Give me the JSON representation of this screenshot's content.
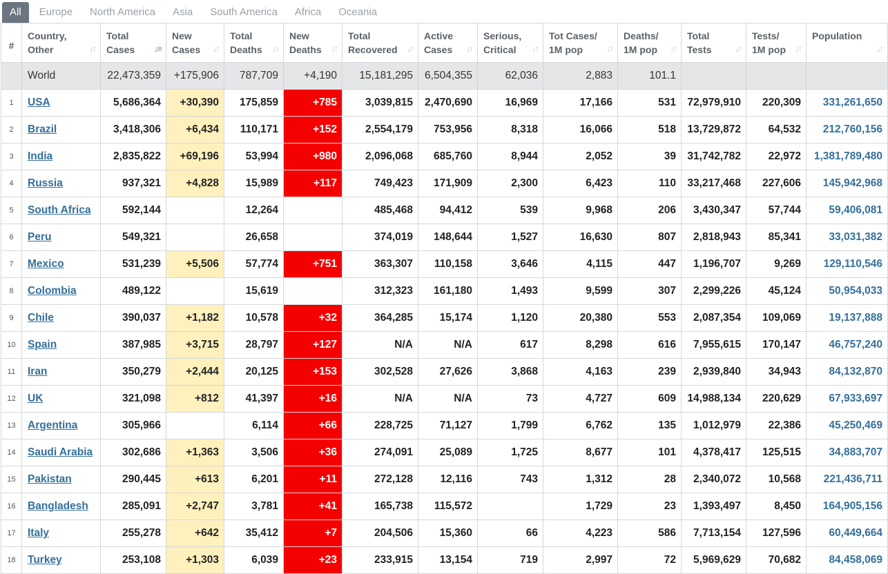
{
  "tabs": [
    {
      "label": "All",
      "active": true
    },
    {
      "label": "Europe",
      "active": false
    },
    {
      "label": "North America",
      "active": false
    },
    {
      "label": "Asia",
      "active": false
    },
    {
      "label": "South America",
      "active": false
    },
    {
      "label": "Africa",
      "active": false
    },
    {
      "label": "Oceania",
      "active": false
    }
  ],
  "headers": [
    {
      "l1": "#",
      "l2": ""
    },
    {
      "l1": "Country,",
      "l2": "Other"
    },
    {
      "l1": "Total",
      "l2": "Cases"
    },
    {
      "l1": "New",
      "l2": "Cases"
    },
    {
      "l1": "Total",
      "l2": "Deaths"
    },
    {
      "l1": "New",
      "l2": "Deaths"
    },
    {
      "l1": "Total",
      "l2": "Recovered"
    },
    {
      "l1": "Active",
      "l2": "Cases"
    },
    {
      "l1": "Serious,",
      "l2": "Critical"
    },
    {
      "l1": "Tot Cases/",
      "l2": "1M pop"
    },
    {
      "l1": "Deaths/",
      "l2": "1M pop"
    },
    {
      "l1": "Total",
      "l2": "Tests"
    },
    {
      "l1": "Tests/",
      "l2": "1M pop"
    },
    {
      "l1": "Population",
      "l2": ""
    }
  ],
  "active_sort_column": "Total Cases",
  "colors": {
    "tab_active_bg": "#6a7580",
    "new_cases_highlight": "#fff1bd",
    "new_deaths_highlight": "#f40000",
    "link": "#346f9b",
    "world_row_bg": "#e5e6e8"
  },
  "world": {
    "name": "World",
    "total_cases": "22,473,359",
    "new_cases": "+175,906",
    "total_deaths": "787,709",
    "new_deaths": "+4,190",
    "total_recovered": "15,181,295",
    "active_cases": "6,504,355",
    "serious": "62,036",
    "cases_per_1m": "2,883",
    "deaths_per_1m": "101.1",
    "total_tests": "",
    "tests_per_1m": "",
    "population": ""
  },
  "rows": [
    {
      "num": "1",
      "name": "USA",
      "total_cases": "5,686,364",
      "new_cases": "+30,390",
      "total_deaths": "175,859",
      "new_deaths": "+785",
      "total_recovered": "3,039,815",
      "active_cases": "2,470,690",
      "serious": "16,969",
      "cases_per_1m": "17,166",
      "deaths_per_1m": "531",
      "total_tests": "72,979,910",
      "tests_per_1m": "220,309",
      "population": "331,261,650"
    },
    {
      "num": "2",
      "name": "Brazil",
      "total_cases": "3,418,306",
      "new_cases": "+6,434",
      "total_deaths": "110,171",
      "new_deaths": "+152",
      "total_recovered": "2,554,179",
      "active_cases": "753,956",
      "serious": "8,318",
      "cases_per_1m": "16,066",
      "deaths_per_1m": "518",
      "total_tests": "13,729,872",
      "tests_per_1m": "64,532",
      "population": "212,760,156"
    },
    {
      "num": "3",
      "name": "India",
      "total_cases": "2,835,822",
      "new_cases": "+69,196",
      "total_deaths": "53,994",
      "new_deaths": "+980",
      "total_recovered": "2,096,068",
      "active_cases": "685,760",
      "serious": "8,944",
      "cases_per_1m": "2,052",
      "deaths_per_1m": "39",
      "total_tests": "31,742,782",
      "tests_per_1m": "22,972",
      "population": "1,381,789,480"
    },
    {
      "num": "4",
      "name": "Russia",
      "total_cases": "937,321",
      "new_cases": "+4,828",
      "total_deaths": "15,989",
      "new_deaths": "+117",
      "total_recovered": "749,423",
      "active_cases": "171,909",
      "serious": "2,300",
      "cases_per_1m": "6,423",
      "deaths_per_1m": "110",
      "total_tests": "33,217,468",
      "tests_per_1m": "227,606",
      "population": "145,942,968"
    },
    {
      "num": "5",
      "name": "South Africa",
      "total_cases": "592,144",
      "new_cases": "",
      "total_deaths": "12,264",
      "new_deaths": "",
      "total_recovered": "485,468",
      "active_cases": "94,412",
      "serious": "539",
      "cases_per_1m": "9,968",
      "deaths_per_1m": "206",
      "total_tests": "3,430,347",
      "tests_per_1m": "57,744",
      "population": "59,406,081"
    },
    {
      "num": "6",
      "name": "Peru",
      "total_cases": "549,321",
      "new_cases": "",
      "total_deaths": "26,658",
      "new_deaths": "",
      "total_recovered": "374,019",
      "active_cases": "148,644",
      "serious": "1,527",
      "cases_per_1m": "16,630",
      "deaths_per_1m": "807",
      "total_tests": "2,818,943",
      "tests_per_1m": "85,341",
      "population": "33,031,382"
    },
    {
      "num": "7",
      "name": "Mexico",
      "total_cases": "531,239",
      "new_cases": "+5,506",
      "total_deaths": "57,774",
      "new_deaths": "+751",
      "total_recovered": "363,307",
      "active_cases": "110,158",
      "serious": "3,646",
      "cases_per_1m": "4,115",
      "deaths_per_1m": "447",
      "total_tests": "1,196,707",
      "tests_per_1m": "9,269",
      "population": "129,110,546"
    },
    {
      "num": "8",
      "name": "Colombia",
      "total_cases": "489,122",
      "new_cases": "",
      "total_deaths": "15,619",
      "new_deaths": "",
      "total_recovered": "312,323",
      "active_cases": "161,180",
      "serious": "1,493",
      "cases_per_1m": "9,599",
      "deaths_per_1m": "307",
      "total_tests": "2,299,226",
      "tests_per_1m": "45,124",
      "population": "50,954,033"
    },
    {
      "num": "9",
      "name": "Chile",
      "total_cases": "390,037",
      "new_cases": "+1,182",
      "total_deaths": "10,578",
      "new_deaths": "+32",
      "total_recovered": "364,285",
      "active_cases": "15,174",
      "serious": "1,120",
      "cases_per_1m": "20,380",
      "deaths_per_1m": "553",
      "total_tests": "2,087,354",
      "tests_per_1m": "109,069",
      "population": "19,137,888"
    },
    {
      "num": "10",
      "name": "Spain",
      "total_cases": "387,985",
      "new_cases": "+3,715",
      "total_deaths": "28,797",
      "new_deaths": "+127",
      "total_recovered": "N/A",
      "active_cases": "N/A",
      "serious": "617",
      "cases_per_1m": "8,298",
      "deaths_per_1m": "616",
      "total_tests": "7,955,615",
      "tests_per_1m": "170,147",
      "population": "46,757,240"
    },
    {
      "num": "11",
      "name": "Iran",
      "total_cases": "350,279",
      "new_cases": "+2,444",
      "total_deaths": "20,125",
      "new_deaths": "+153",
      "total_recovered": "302,528",
      "active_cases": "27,626",
      "serious": "3,868",
      "cases_per_1m": "4,163",
      "deaths_per_1m": "239",
      "total_tests": "2,939,840",
      "tests_per_1m": "34,943",
      "population": "84,132,870"
    },
    {
      "num": "12",
      "name": "UK",
      "total_cases": "321,098",
      "new_cases": "+812",
      "total_deaths": "41,397",
      "new_deaths": "+16",
      "total_recovered": "N/A",
      "active_cases": "N/A",
      "serious": "73",
      "cases_per_1m": "4,727",
      "deaths_per_1m": "609",
      "total_tests": "14,988,134",
      "tests_per_1m": "220,629",
      "population": "67,933,697"
    },
    {
      "num": "13",
      "name": "Argentina",
      "total_cases": "305,966",
      "new_cases": "",
      "total_deaths": "6,114",
      "new_deaths": "+66",
      "total_recovered": "228,725",
      "active_cases": "71,127",
      "serious": "1,799",
      "cases_per_1m": "6,762",
      "deaths_per_1m": "135",
      "total_tests": "1,012,979",
      "tests_per_1m": "22,386",
      "population": "45,250,469"
    },
    {
      "num": "14",
      "name": "Saudi Arabia",
      "total_cases": "302,686",
      "new_cases": "+1,363",
      "total_deaths": "3,506",
      "new_deaths": "+36",
      "total_recovered": "274,091",
      "active_cases": "25,089",
      "serious": "1,725",
      "cases_per_1m": "8,677",
      "deaths_per_1m": "101",
      "total_tests": "4,378,417",
      "tests_per_1m": "125,515",
      "population": "34,883,707"
    },
    {
      "num": "15",
      "name": "Pakistan",
      "total_cases": "290,445",
      "new_cases": "+613",
      "total_deaths": "6,201",
      "new_deaths": "+11",
      "total_recovered": "272,128",
      "active_cases": "12,116",
      "serious": "743",
      "cases_per_1m": "1,312",
      "deaths_per_1m": "28",
      "total_tests": "2,340,072",
      "tests_per_1m": "10,568",
      "population": "221,436,711"
    },
    {
      "num": "16",
      "name": "Bangladesh",
      "total_cases": "285,091",
      "new_cases": "+2,747",
      "total_deaths": "3,781",
      "new_deaths": "+41",
      "total_recovered": "165,738",
      "active_cases": "115,572",
      "serious": "",
      "cases_per_1m": "1,729",
      "deaths_per_1m": "23",
      "total_tests": "1,393,497",
      "tests_per_1m": "8,450",
      "population": "164,905,156"
    },
    {
      "num": "17",
      "name": "Italy",
      "total_cases": "255,278",
      "new_cases": "+642",
      "total_deaths": "35,412",
      "new_deaths": "+7",
      "total_recovered": "204,506",
      "active_cases": "15,360",
      "serious": "66",
      "cases_per_1m": "4,223",
      "deaths_per_1m": "586",
      "total_tests": "7,713,154",
      "tests_per_1m": "127,596",
      "population": "60,449,664"
    },
    {
      "num": "18",
      "name": "Turkey",
      "total_cases": "253,108",
      "new_cases": "+1,303",
      "total_deaths": "6,039",
      "new_deaths": "+23",
      "total_recovered": "233,915",
      "active_cases": "13,154",
      "serious": "719",
      "cases_per_1m": "2,997",
      "deaths_per_1m": "72",
      "total_tests": "5,969,629",
      "tests_per_1m": "70,682",
      "population": "84,458,069"
    }
  ]
}
